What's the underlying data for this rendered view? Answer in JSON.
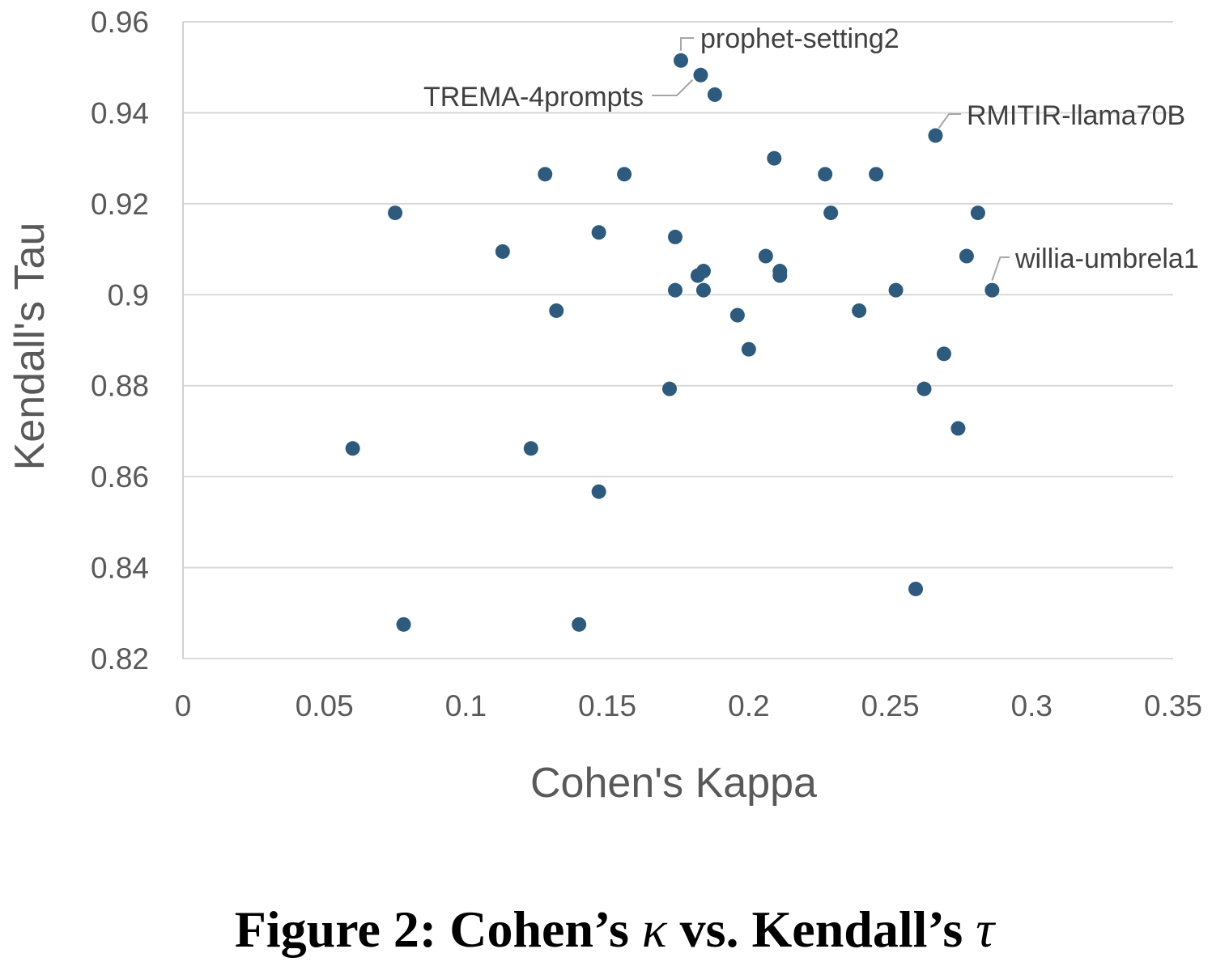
{
  "chart_data": {
    "type": "scatter",
    "title": "",
    "xlabel": "Cohen's Kappa",
    "ylabel": "Kendall's Tau",
    "xlim": [
      0,
      0.35
    ],
    "ylim": [
      0.82,
      0.96
    ],
    "x_ticks": [
      "0",
      "0.05",
      "0.1",
      "0.15",
      "0.2",
      "0.25",
      "0.3",
      "0.35"
    ],
    "y_ticks": [
      "0.82",
      "0.84",
      "0.86",
      "0.88",
      "0.9",
      "0.92",
      "0.94",
      "0.96"
    ],
    "grid": "horizontal",
    "color": "#2e5b7d",
    "points": [
      {
        "x": 0.176,
        "y": 0.9515
      },
      {
        "x": 0.183,
        "y": 0.9483
      },
      {
        "x": 0.188,
        "y": 0.944
      },
      {
        "x": 0.266,
        "y": 0.935
      },
      {
        "x": 0.209,
        "y": 0.93
      },
      {
        "x": 0.128,
        "y": 0.9265
      },
      {
        "x": 0.156,
        "y": 0.9265
      },
      {
        "x": 0.227,
        "y": 0.9265
      },
      {
        "x": 0.245,
        "y": 0.9265
      },
      {
        "x": 0.075,
        "y": 0.918
      },
      {
        "x": 0.229,
        "y": 0.918
      },
      {
        "x": 0.281,
        "y": 0.918
      },
      {
        "x": 0.147,
        "y": 0.9137
      },
      {
        "x": 0.174,
        "y": 0.9127
      },
      {
        "x": 0.113,
        "y": 0.9095
      },
      {
        "x": 0.206,
        "y": 0.9085
      },
      {
        "x": 0.277,
        "y": 0.9085
      },
      {
        "x": 0.184,
        "y": 0.9052
      },
      {
        "x": 0.211,
        "y": 0.9052
      },
      {
        "x": 0.182,
        "y": 0.9042
      },
      {
        "x": 0.211,
        "y": 0.9042
      },
      {
        "x": 0.174,
        "y": 0.901
      },
      {
        "x": 0.184,
        "y": 0.901
      },
      {
        "x": 0.252,
        "y": 0.901
      },
      {
        "x": 0.286,
        "y": 0.901
      },
      {
        "x": 0.132,
        "y": 0.8965
      },
      {
        "x": 0.239,
        "y": 0.8965
      },
      {
        "x": 0.196,
        "y": 0.8955
      },
      {
        "x": 0.2,
        "y": 0.888
      },
      {
        "x": 0.269,
        "y": 0.887
      },
      {
        "x": 0.172,
        "y": 0.8793
      },
      {
        "x": 0.262,
        "y": 0.8793
      },
      {
        "x": 0.274,
        "y": 0.8706
      },
      {
        "x": 0.06,
        "y": 0.8662
      },
      {
        "x": 0.123,
        "y": 0.8662
      },
      {
        "x": 0.147,
        "y": 0.8567
      },
      {
        "x": 0.259,
        "y": 0.8353
      },
      {
        "x": 0.078,
        "y": 0.8275
      },
      {
        "x": 0.14,
        "y": 0.8275
      }
    ],
    "annotations": [
      {
        "text": "prophet-setting2",
        "x": 0.176,
        "y": 0.9515
      },
      {
        "text": "TREMA-4prompts",
        "x": 0.183,
        "y": 0.9483
      },
      {
        "text": "RMITIR-llama70B",
        "x": 0.266,
        "y": 0.935
      },
      {
        "text": "willia-umbrela1",
        "x": 0.286,
        "y": 0.901
      }
    ]
  },
  "caption": {
    "prefix": "Figure 2: Cohen’s ",
    "kappa": "κ",
    "middle": " vs. Kendall’s ",
    "tau": "τ"
  }
}
